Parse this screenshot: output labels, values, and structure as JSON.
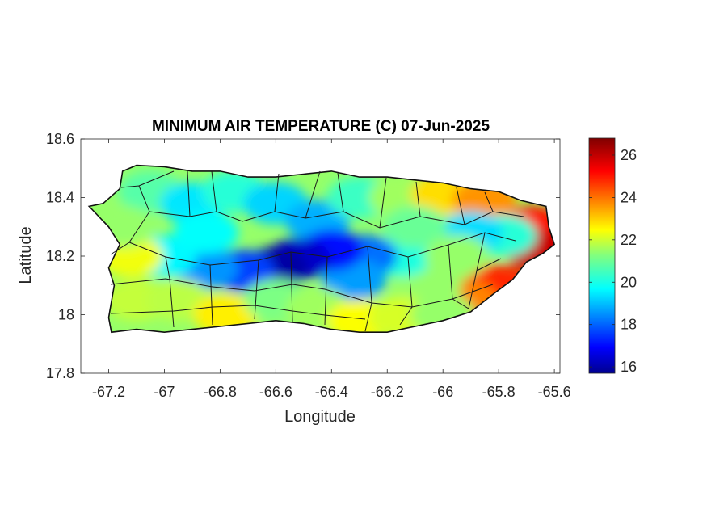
{
  "chart_data": {
    "type": "heatmap",
    "title": "MINIMUM AIR TEMPERATURE (C) 07-Jun-2025",
    "xlabel": "Longitude",
    "ylabel": "Latitude",
    "xlim": [
      -67.3,
      -65.58
    ],
    "ylim": [
      17.8,
      18.6
    ],
    "xticks": [
      -67.2,
      -67,
      -66.8,
      -66.6,
      -66.4,
      -66.2,
      -66,
      -65.8,
      -65.6
    ],
    "xtick_labels": [
      "-67.2",
      "-67",
      "-66.8",
      "-66.6",
      "-66.4",
      "-66.2",
      "-66",
      "-65.8",
      "-65.6"
    ],
    "yticks": [
      17.8,
      18,
      18.2,
      18.4,
      18.6
    ],
    "ytick_labels": [
      "17.8",
      "18",
      "18.2",
      "18.4",
      "18.6"
    ],
    "colorbar": {
      "colormap": "jet",
      "range": [
        15.7,
        26.8
      ],
      "ticks": [
        16,
        18,
        20,
        22,
        24,
        26
      ],
      "tick_labels": [
        "16",
        "18",
        "20",
        "22",
        "24",
        "26"
      ]
    },
    "outline": [
      [
        -67.27,
        18.37
      ],
      [
        -67.22,
        18.38
      ],
      [
        -67.16,
        18.43
      ],
      [
        -67.15,
        18.49
      ],
      [
        -67.1,
        18.51
      ],
      [
        -67.0,
        18.505
      ],
      [
        -66.9,
        18.49
      ],
      [
        -66.8,
        18.49
      ],
      [
        -66.7,
        18.47
      ],
      [
        -66.6,
        18.47
      ],
      [
        -66.5,
        18.48
      ],
      [
        -66.4,
        18.49
      ],
      [
        -66.3,
        18.47
      ],
      [
        -66.2,
        18.47
      ],
      [
        -66.1,
        18.46
      ],
      [
        -66.0,
        18.45
      ],
      [
        -65.9,
        18.43
      ],
      [
        -65.8,
        18.42
      ],
      [
        -65.72,
        18.39
      ],
      [
        -65.63,
        18.37
      ],
      [
        -65.62,
        18.3
      ],
      [
        -65.6,
        18.24
      ],
      [
        -65.64,
        18.21
      ],
      [
        -65.7,
        18.18
      ],
      [
        -65.75,
        18.12
      ],
      [
        -65.82,
        18.07
      ],
      [
        -65.9,
        18.01
      ],
      [
        -66.0,
        17.98
      ],
      [
        -66.1,
        17.96
      ],
      [
        -66.2,
        17.94
      ],
      [
        -66.3,
        17.94
      ],
      [
        -66.4,
        17.95
      ],
      [
        -66.5,
        17.97
      ],
      [
        -66.6,
        17.98
      ],
      [
        -66.7,
        17.97
      ],
      [
        -66.8,
        17.96
      ],
      [
        -66.9,
        17.95
      ],
      [
        -67.0,
        17.94
      ],
      [
        -67.1,
        17.95
      ],
      [
        -67.19,
        17.94
      ],
      [
        -67.2,
        17.99
      ],
      [
        -67.18,
        18.1
      ],
      [
        -67.2,
        18.16
      ],
      [
        -67.16,
        18.24
      ],
      [
        -67.2,
        18.3
      ],
      [
        -67.27,
        18.37
      ]
    ],
    "field": [
      {
        "x": -67.05,
        "y": 18.42,
        "t": 20.8
      },
      {
        "x": -66.9,
        "y": 18.38,
        "t": 19.6
      },
      {
        "x": -66.75,
        "y": 18.42,
        "t": 20.3
      },
      {
        "x": -66.6,
        "y": 18.38,
        "t": 19.4
      },
      {
        "x": -66.45,
        "y": 18.32,
        "t": 19.0
      },
      {
        "x": -66.3,
        "y": 18.4,
        "t": 20.5
      },
      {
        "x": -66.15,
        "y": 18.4,
        "t": 21.6
      },
      {
        "x": -66.0,
        "y": 18.41,
        "t": 23.0
      },
      {
        "x": -65.85,
        "y": 18.39,
        "t": 23.8
      },
      {
        "x": -65.68,
        "y": 18.3,
        "t": 25.2
      },
      {
        "x": -65.66,
        "y": 18.22,
        "t": 26.0
      },
      {
        "x": -65.78,
        "y": 18.27,
        "t": 20.3
      },
      {
        "x": -65.9,
        "y": 18.28,
        "t": 19.5
      },
      {
        "x": -65.8,
        "y": 18.1,
        "t": 25.0
      },
      {
        "x": -65.92,
        "y": 18.05,
        "t": 24.0
      },
      {
        "x": -66.05,
        "y": 18.1,
        "t": 21.5
      },
      {
        "x": -66.15,
        "y": 18.2,
        "t": 20.2
      },
      {
        "x": -66.28,
        "y": 18.2,
        "t": 18.3
      },
      {
        "x": -66.32,
        "y": 18.12,
        "t": 18.8
      },
      {
        "x": -66.4,
        "y": 18.22,
        "t": 17.2
      },
      {
        "x": -66.52,
        "y": 18.19,
        "t": 16.5
      },
      {
        "x": -66.6,
        "y": 18.16,
        "t": 16.1
      },
      {
        "x": -66.72,
        "y": 18.15,
        "t": 17.8
      },
      {
        "x": -66.85,
        "y": 18.16,
        "t": 18.7
      },
      {
        "x": -67.0,
        "y": 18.2,
        "t": 19.8
      },
      {
        "x": -67.12,
        "y": 18.2,
        "t": 22.5
      },
      {
        "x": -67.15,
        "y": 18.3,
        "t": 21.5
      },
      {
        "x": -67.1,
        "y": 18.05,
        "t": 22.0
      },
      {
        "x": -66.95,
        "y": 18.05,
        "t": 21.9
      },
      {
        "x": -66.78,
        "y": 18.0,
        "t": 22.8
      },
      {
        "x": -66.6,
        "y": 18.05,
        "t": 21.2
      },
      {
        "x": -66.45,
        "y": 18.02,
        "t": 21.6
      },
      {
        "x": -66.3,
        "y": 17.98,
        "t": 22.6
      },
      {
        "x": -66.15,
        "y": 17.99,
        "t": 22.2
      },
      {
        "x": -66.0,
        "y": 18.0,
        "t": 21.5
      },
      {
        "x": -66.85,
        "y": 18.28,
        "t": 19.9
      },
      {
        "x": -66.1,
        "y": 18.3,
        "t": 21.0
      },
      {
        "x": -65.95,
        "y": 18.2,
        "t": 21.5
      }
    ]
  }
}
